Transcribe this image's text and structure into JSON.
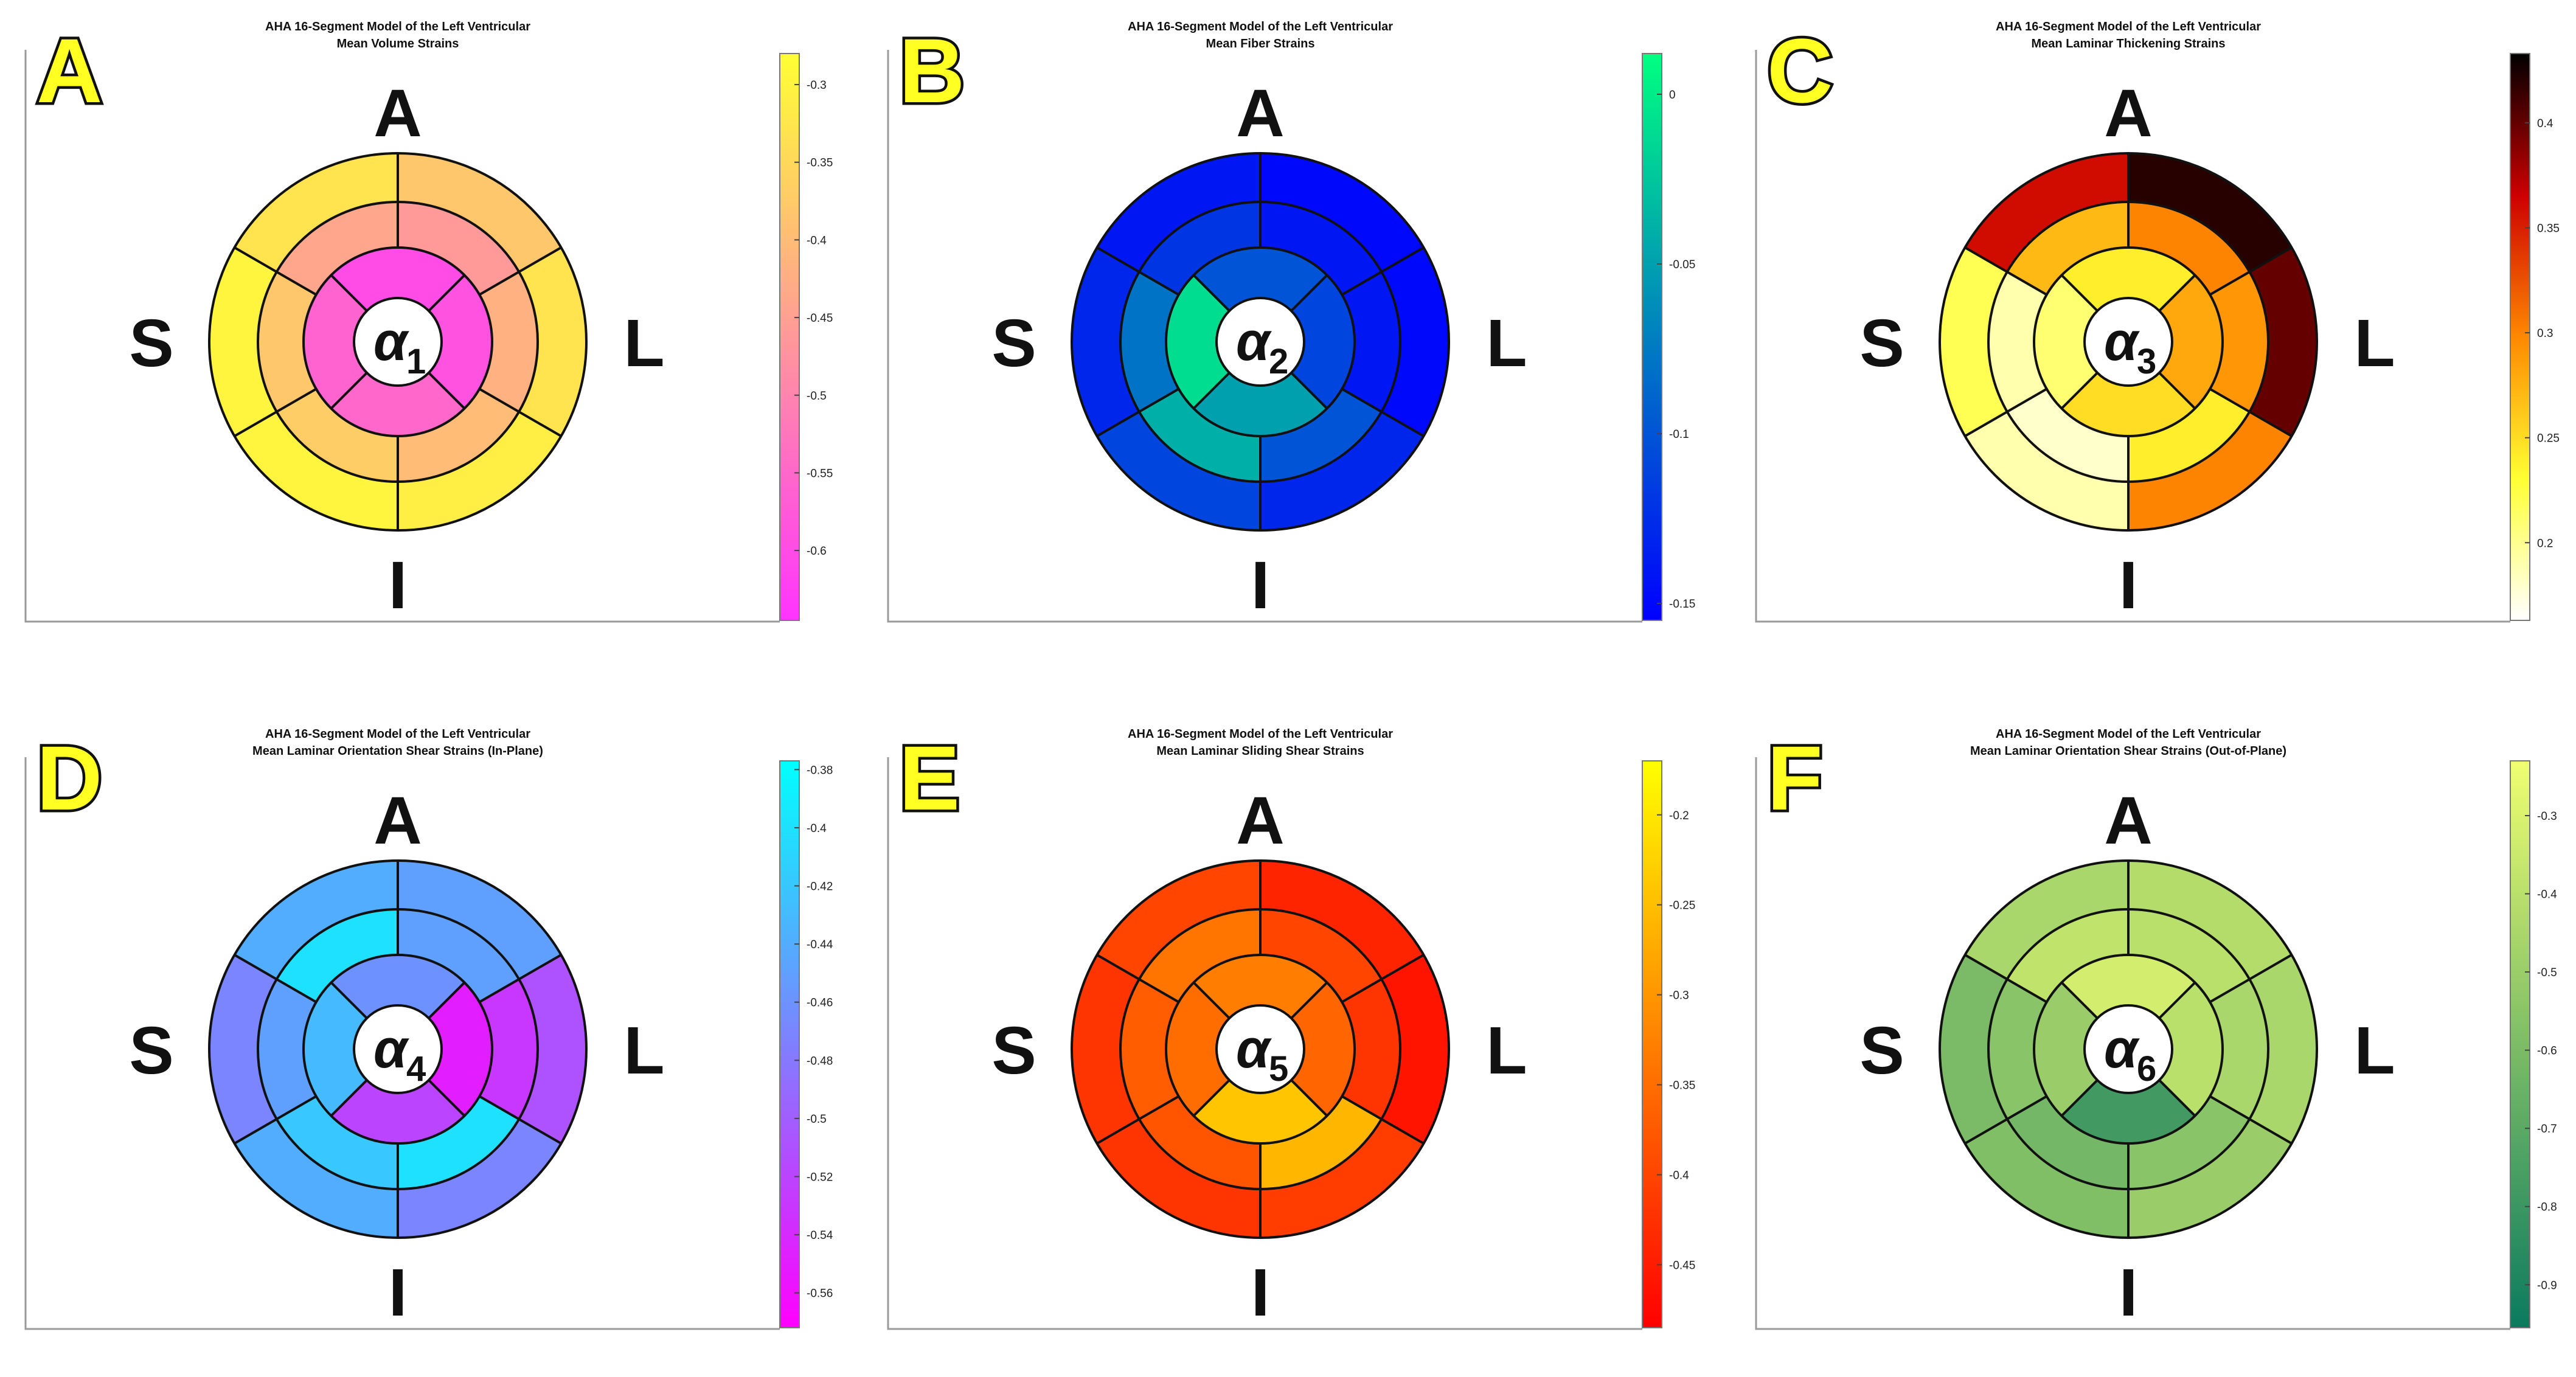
{
  "figure": {
    "panels": [
      {
        "letter": "A",
        "title": "AHA 16-Segment Model of the Left Ventricular",
        "subtitle": "Mean Volume Strains",
        "center_symbol": "α",
        "center_subscript": "1",
        "direction_labels": {
          "anterior": "A",
          "septal": "S",
          "lateral": "L",
          "inferior": "I"
        },
        "colormap_colors": [
          "#ff33ff",
          "#ffff33"
        ],
        "chart_data": {
          "type": "heatmap",
          "layout": "AHA 16-segment bullseye",
          "colorbar": {
            "min": -0.645,
            "max": -0.28,
            "ticks": [
              -0.3,
              -0.35,
              -0.4,
              -0.45,
              -0.5,
              -0.55,
              -0.6
            ],
            "tick_labels": [
              "-0.3",
              "-0.35",
              "-0.4",
              "-0.45",
              "-0.5",
              "-0.55",
              "-0.6"
            ]
          },
          "segments": {
            "basal": {
              "anterior": -0.33,
              "anterolateral": -0.38,
              "inferolateral": -0.33,
              "inferior": -0.31,
              "inferoseptal": -0.3,
              "anteroseptal": -0.3
            },
            "mid": {
              "anterior": -0.44,
              "anterolateral": -0.46,
              "inferolateral": -0.42,
              "inferior": -0.4,
              "inferoseptal": -0.37,
              "anteroseptal": -0.38
            },
            "apical": {
              "anterior": -0.6,
              "lateral": -0.59,
              "inferior": -0.55,
              "septal": -0.56
            }
          }
        }
      },
      {
        "letter": "B",
        "title": "AHA 16-Segment Model of the Left Ventricular",
        "subtitle": "Mean Fiber Strains",
        "center_symbol": "α",
        "center_subscript": "2",
        "direction_labels": {
          "anterior": "A",
          "septal": "S",
          "lateral": "L",
          "inferior": "I"
        },
        "colormap_colors": [
          "#0000ff",
          "#00ff80"
        ],
        "chart_data": {
          "type": "heatmap",
          "layout": "AHA 16-segment bullseye",
          "colorbar": {
            "min": -0.155,
            "max": 0.012,
            "ticks": [
              0,
              -0.05,
              -0.1,
              -0.15
            ],
            "tick_labels": [
              "0",
              "-0.05",
              "-0.1",
              "-0.15"
            ]
          },
          "segments": {
            "basal": {
              "anterior": -0.14,
              "anterolateral": -0.15,
              "inferolateral": -0.15,
              "inferior": -0.13,
              "inferoseptal": -0.11,
              "anteroseptal": -0.13
            },
            "mid": {
              "anterior": -0.12,
              "anterolateral": -0.14,
              "inferolateral": -0.14,
              "inferior": -0.1,
              "inferoseptal": -0.04,
              "anteroseptal": -0.08
            },
            "apical": {
              "anterior": -0.1,
              "lateral": -0.11,
              "inferior": -0.05,
              "septal": -0.01
            }
          }
        }
      },
      {
        "letter": "C",
        "title": "AHA 16-Segment Model of the Left Ventricular",
        "subtitle": "Mean Laminar Thickening Strains",
        "center_symbol": "α",
        "center_subscript": "3",
        "direction_labels": {
          "anterior": "A",
          "septal": "S",
          "lateral": "L",
          "inferior": "I"
        },
        "colormap_colors": [
          "#ffffff",
          "#ffff33",
          "#ff8800",
          "#cc0000",
          "#000000"
        ],
        "chart_data": {
          "type": "heatmap",
          "layout": "AHA 16-segment bullseye",
          "colorbar": {
            "min": 0.163,
            "max": 0.433,
            "ticks": [
              0.4,
              0.35,
              0.3,
              0.25,
              0.2
            ],
            "tick_labels": [
              "0.4",
              "0.35",
              "0.3",
              "0.25",
              "0.2"
            ]
          },
          "segments": {
            "basal": {
              "anterior": 0.36,
              "anterolateral": 0.42,
              "inferolateral": 0.4,
              "inferior": 0.3,
              "inferoseptal": 0.19,
              "anteroseptal": 0.22
            },
            "mid": {
              "anterior": 0.27,
              "anterolateral": 0.3,
              "inferolateral": 0.29,
              "inferior": 0.24,
              "inferoseptal": 0.18,
              "anteroseptal": 0.19
            },
            "apical": {
              "anterior": 0.24,
              "lateral": 0.28,
              "inferior": 0.25,
              "septal": 0.21
            }
          }
        }
      },
      {
        "letter": "D",
        "title": "AHA 16-Segment Model of the Left Ventricular",
        "subtitle": "Mean Laminar Orientation Shear Strains (In-Plane)",
        "center_symbol": "α",
        "center_subscript": "4",
        "direction_labels": {
          "anterior": "A",
          "septal": "S",
          "lateral": "L",
          "inferior": "I"
        },
        "colormap_colors": [
          "#ff00ff",
          "#00ffff"
        ],
        "chart_data": {
          "type": "heatmap",
          "layout": "AHA 16-segment bullseye",
          "colorbar": {
            "min": -0.572,
            "max": -0.377,
            "ticks": [
              -0.38,
              -0.4,
              -0.42,
              -0.44,
              -0.46,
              -0.48,
              -0.5,
              -0.52,
              -0.54,
              -0.56
            ],
            "tick_labels": [
              "-0.38",
              "-0.4",
              "-0.42",
              "-0.44",
              "-0.46",
              "-0.48",
              "-0.5",
              "-0.52",
              "-0.54",
              "-0.56"
            ]
          },
          "segments": {
            "basal": {
              "anterior": -0.44,
              "anterolateral": -0.45,
              "inferolateral": -0.51,
              "inferior": -0.47,
              "inferoseptal": -0.44,
              "anteroseptal": -0.47
            },
            "mid": {
              "anterior": -0.4,
              "anterolateral": -0.45,
              "inferolateral": -0.53,
              "inferior": -0.4,
              "inferoseptal": -0.42,
              "anteroseptal": -0.45
            },
            "apical": {
              "anterior": -0.46,
              "lateral": -0.55,
              "inferior": -0.52,
              "septal": -0.43
            }
          }
        }
      },
      {
        "letter": "E",
        "title": "AHA 16-Segment Model of the Left Ventricular",
        "subtitle": "Mean Laminar Sliding Shear Strains",
        "center_symbol": "α",
        "center_subscript": "5",
        "direction_labels": {
          "anterior": "A",
          "septal": "S",
          "lateral": "L",
          "inferior": "I"
        },
        "colormap_colors": [
          "#ff0000",
          "#ffff00"
        ],
        "chart_data": {
          "type": "heatmap",
          "layout": "AHA 16-segment bullseye",
          "colorbar": {
            "min": -0.485,
            "max": -0.17,
            "ticks": [
              -0.2,
              -0.25,
              -0.3,
              -0.35,
              -0.4,
              -0.45
            ],
            "tick_labels": [
              "-0.2",
              "-0.25",
              "-0.3",
              "-0.35",
              "-0.4",
              "-0.45"
            ]
          },
          "segments": {
            "basal": {
              "anterior": -0.4,
              "anterolateral": -0.44,
              "inferolateral": -0.46,
              "inferior": -0.41,
              "inferoseptal": -0.42,
              "anteroseptal": -0.42
            },
            "mid": {
              "anterior": -0.34,
              "anterolateral": -0.4,
              "inferolateral": -0.42,
              "inferior": -0.26,
              "inferoseptal": -0.38,
              "anteroseptal": -0.37
            },
            "apical": {
              "anterior": -0.33,
              "lateral": -0.36,
              "inferior": -0.24,
              "septal": -0.35
            }
          }
        }
      },
      {
        "letter": "F",
        "title": "AHA 16-Segment Model of the Left Ventricular",
        "subtitle": "Mean Laminar Orientation Shear Strains (Out-of-Plane)",
        "center_symbol": "α",
        "center_subscript": "6",
        "direction_labels": {
          "anterior": "A",
          "septal": "S",
          "lateral": "L",
          "inferior": "I"
        },
        "colormap_colors": [
          "#0a7a5e",
          "#f0ff70"
        ],
        "chart_data": {
          "type": "heatmap",
          "layout": "AHA 16-segment bullseye",
          "colorbar": {
            "min": -0.955,
            "max": -0.23,
            "ticks": [
              -0.3,
              -0.4,
              -0.5,
              -0.6,
              -0.7,
              -0.8,
              -0.9
            ],
            "tick_labels": [
              "-0.3",
              "-0.4",
              "-0.5",
              "-0.6",
              "-0.7",
              "-0.8",
              "-0.9"
            ]
          },
          "segments": {
            "basal": {
              "anterior": -0.45,
              "anterolateral": -0.42,
              "inferolateral": -0.45,
              "inferior": -0.5,
              "inferoseptal": -0.58,
              "anteroseptal": -0.6
            },
            "mid": {
              "anterior": -0.38,
              "anterolateral": -0.4,
              "inferolateral": -0.45,
              "inferior": -0.55,
              "inferoseptal": -0.62,
              "anteroseptal": -0.55
            },
            "apical": {
              "anterior": -0.32,
              "lateral": -0.4,
              "inferior": -0.78,
              "septal": -0.5
            }
          }
        }
      }
    ]
  }
}
